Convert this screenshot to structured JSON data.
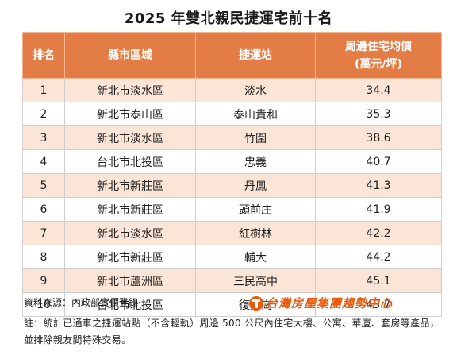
{
  "title": "2025 年雙北親民捷運宅前十名",
  "headers": {
    "rank": "排名",
    "district": "縣市區域",
    "station": "捷運站",
    "price_line1": "周邊住宅均價",
    "price_line2": "(萬元/坪)"
  },
  "rows": [
    {
      "rank": "1",
      "district": "新北市淡水區",
      "station": "淡水",
      "price": "34.4"
    },
    {
      "rank": "2",
      "district": "新北市泰山區",
      "station": "泰山貴和",
      "price": "35.3"
    },
    {
      "rank": "3",
      "district": "新北市淡水區",
      "station": "竹圍",
      "price": "38.6"
    },
    {
      "rank": "4",
      "district": "台北市北投區",
      "station": "忠義",
      "price": "40.7"
    },
    {
      "rank": "5",
      "district": "新北市新莊區",
      "station": "丹鳳",
      "price": "41.3"
    },
    {
      "rank": "6",
      "district": "新北市新莊區",
      "station": "頭前庄",
      "price": "41.9"
    },
    {
      "rank": "7",
      "district": "新北市淡水區",
      "station": "紅樹林",
      "price": "42.2"
    },
    {
      "rank": "8",
      "district": "新北市新莊區",
      "station": "輔大",
      "price": "44.2"
    },
    {
      "rank": "9",
      "district": "新北市蘆洲區",
      "station": "三民高中",
      "price": "45.1"
    },
    {
      "rank": "10",
      "district": "台北市北投區",
      "station": "復興崗",
      "price": "45.7"
    }
  ],
  "source": "資料來源：內政部實價登錄",
  "logo": {
    "text": "台灣房屋集團趨勢中心",
    "icon": "taiwan-realty-logo-icon",
    "color": "#e8590c"
  },
  "note": "註：統計已通車之捷運站點（不含輕軌）周邊 500 公尺內住宅大樓、公寓、華廈、套房等產品，並排除親友間特殊交易。",
  "colors": {
    "header_bg": "#e37d45",
    "stripe": "#fbe5d6"
  }
}
